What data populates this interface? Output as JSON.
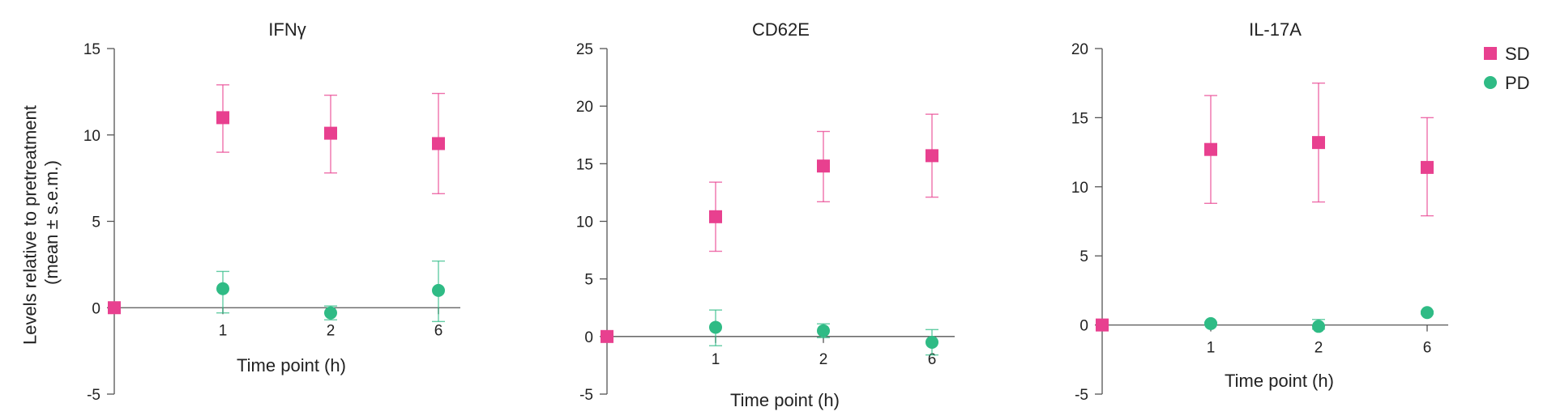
{
  "colors": {
    "SD": "#e8408f",
    "PD": "#2fbb85"
  },
  "shared_ylabel": [
    "Levels relative to pretreatment",
    "(mean ± s.e.m.)"
  ],
  "legend": [
    {
      "name": "SD",
      "marker": "square"
    },
    {
      "name": "PD",
      "marker": "circle"
    }
  ],
  "chart_data": [
    {
      "type": "scatter",
      "title": "IFNγ",
      "xlabel": "Time point (h)",
      "x_categories": [
        "1",
        "2",
        "6"
      ],
      "ylim": [
        -5,
        15
      ],
      "yticks": [
        -5,
        0,
        5,
        10,
        15
      ],
      "baseline": {
        "series": "SD",
        "value": 0
      },
      "series": [
        {
          "name": "SD",
          "marker": "square",
          "values": [
            11.0,
            10.1,
            9.5
          ],
          "err_low": [
            9.0,
            7.8,
            6.6
          ],
          "err_high": [
            12.9,
            12.3,
            12.4
          ]
        },
        {
          "name": "PD",
          "marker": "circle",
          "values": [
            1.1,
            -0.3,
            1.0
          ],
          "err_low": [
            -0.3,
            -0.7,
            -0.8
          ],
          "err_high": [
            2.1,
            0.1,
            2.7
          ]
        }
      ]
    },
    {
      "type": "scatter",
      "title": "CD62E",
      "xlabel": "Time point (h)",
      "x_categories": [
        "1",
        "2",
        "6"
      ],
      "ylim": [
        -5,
        25
      ],
      "yticks": [
        -5,
        0,
        5,
        10,
        15,
        20,
        25
      ],
      "baseline": {
        "series": "SD",
        "value": 0
      },
      "series": [
        {
          "name": "SD",
          "marker": "square",
          "values": [
            10.4,
            14.8,
            15.7
          ],
          "err_low": [
            7.4,
            11.7,
            12.1
          ],
          "err_high": [
            13.4,
            17.8,
            19.3
          ]
        },
        {
          "name": "PD",
          "marker": "circle",
          "values": [
            0.8,
            0.5,
            -0.5
          ],
          "err_low": [
            -0.8,
            -0.1,
            -1.6
          ],
          "err_high": [
            2.3,
            1.1,
            0.6
          ]
        }
      ]
    },
    {
      "type": "scatter",
      "title": "IL-17A",
      "xlabel": "Time point (h)",
      "x_categories": [
        "1",
        "2",
        "6"
      ],
      "ylim": [
        -5,
        20
      ],
      "yticks": [
        -5,
        0,
        5,
        10,
        15,
        20
      ],
      "baseline": {
        "series": "SD",
        "value": 0
      },
      "series": [
        {
          "name": "SD",
          "marker": "square",
          "values": [
            12.7,
            13.2,
            11.4
          ],
          "err_low": [
            8.8,
            8.9,
            7.9
          ],
          "err_high": [
            16.6,
            17.5,
            15.0
          ]
        },
        {
          "name": "PD",
          "marker": "circle",
          "values": [
            0.1,
            -0.1,
            0.9
          ],
          "err_low": [
            0.0,
            -0.3,
            0.8
          ],
          "err_high": [
            0.2,
            0.4,
            1.0
          ]
        }
      ]
    }
  ]
}
